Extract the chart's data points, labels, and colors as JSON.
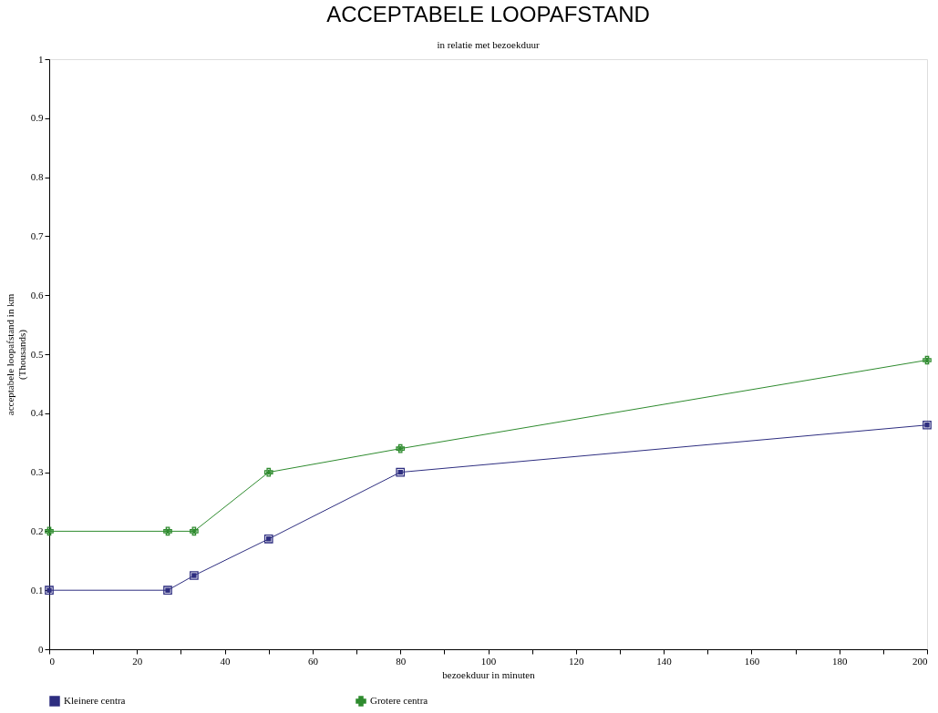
{
  "chart_data": {
    "type": "line",
    "title": "ACCEPTABELE LOOPAFSTAND",
    "subtitle": "in relatie met bezoekduur",
    "xlabel": "bezoekduur in minuten",
    "ylabel": "acceptabele loopafstand in km (Thousands)",
    "xlim": [
      0,
      200
    ],
    "ylim": [
      0,
      1
    ],
    "xticks": [
      0,
      {
        "value": 10,
        "label": null
      },
      20,
      {
        "value": 30,
        "label": null
      },
      40,
      {
        "value": 50,
        "label": null
      },
      60,
      {
        "value": 70,
        "label": null
      },
      80,
      {
        "value": 90,
        "label": null
      },
      100,
      {
        "value": 110,
        "label": null
      },
      120,
      {
        "value": 130,
        "label": null
      },
      140,
      {
        "value": 150,
        "label": null
      },
      160,
      {
        "value": 170,
        "label": null
      },
      180,
      {
        "value": 190,
        "label": null
      },
      200
    ],
    "yticks": [
      0,
      0.1,
      0.2,
      0.3,
      0.4,
      0.5,
      0.6,
      0.7,
      0.8,
      0.9,
      1
    ],
    "grid": false,
    "legend": "bottom",
    "line_style": "solid",
    "series": [
      {
        "name": "Kleinere centra",
        "color": "#2e2e80",
        "marker": "square",
        "x": [
          0,
          27,
          33,
          50,
          80,
          200
        ],
        "values": [
          0.1,
          0.1,
          0.125,
          0.187,
          0.3,
          0.38
        ]
      },
      {
        "name": "Grotere centra",
        "color": "#2e8b2e",
        "marker": "cross",
        "x": [
          0,
          27,
          33,
          50,
          80,
          200
        ],
        "values": [
          0.2,
          0.2,
          0.2,
          0.3,
          0.34,
          0.49
        ]
      }
    ]
  }
}
